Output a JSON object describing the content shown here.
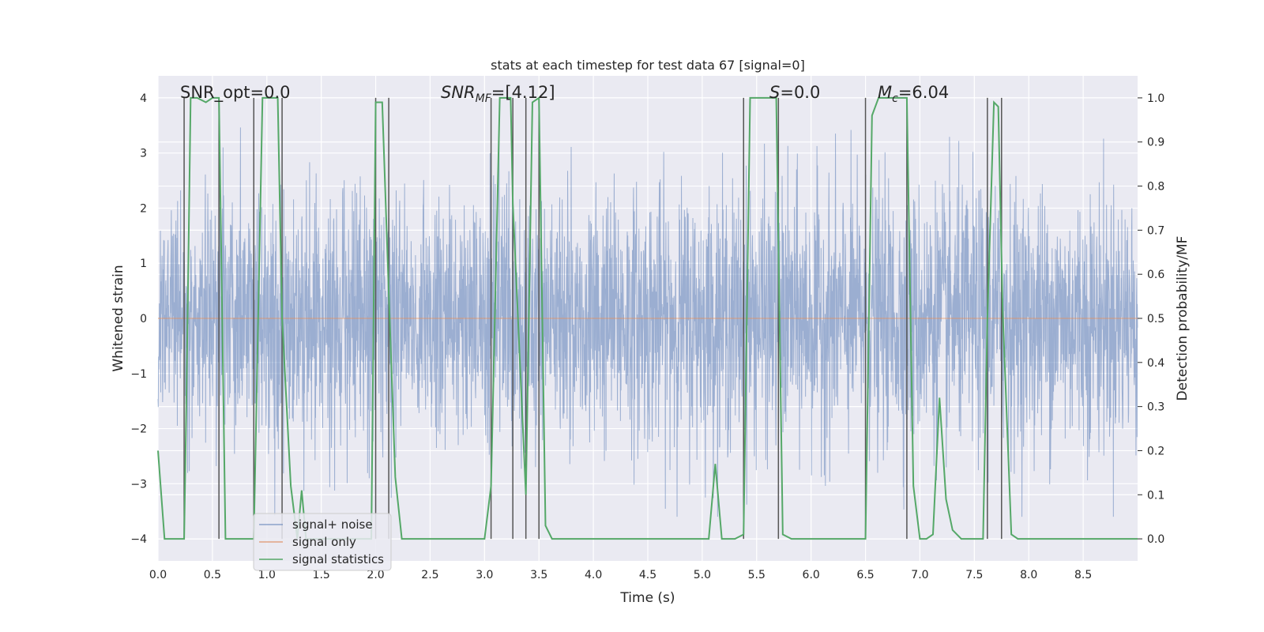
{
  "chart_data": {
    "type": "line",
    "title": "stats at each timestep for test data 67 [signal=0]",
    "xlabel": "Time (s)",
    "ylabel_left": "Whitened strain",
    "ylabel_right": "Detection probability/MF",
    "xlim": [
      0.0,
      9.0
    ],
    "ylim_left": [
      -4.4,
      4.4
    ],
    "ylim_right": [
      -0.05,
      1.05
    ],
    "x_ticks": [
      "0.0",
      "0.5",
      "1.0",
      "1.5",
      "2.0",
      "2.5",
      "3.0",
      "3.5",
      "4.0",
      "4.5",
      "5.0",
      "5.5",
      "6.0",
      "6.5",
      "7.0",
      "7.5",
      "8.0",
      "8.5"
    ],
    "y_ticks_left": [
      "4",
      "3",
      "2",
      "1",
      "0",
      "−1",
      "−2",
      "−3",
      "−4"
    ],
    "y_ticks_right": [
      "1.0",
      "0.9",
      "0.8",
      "0.7",
      "0.6",
      "0.5",
      "0.4",
      "0.3",
      "0.2",
      "0.1",
      "0.0"
    ],
    "grid": true,
    "annotations": {
      "snr_opt": "SNR_opt=0.0",
      "snr_mf": "=[4.12]",
      "s_val": "=0.0",
      "mc_val": "=6.04"
    },
    "legend": {
      "placement": "lower-left",
      "entries": [
        {
          "label": "signal+ noise",
          "color": "#4c72b0"
        },
        {
          "label": "signal only",
          "color": "#dd8452"
        },
        {
          "label": "signal statistics",
          "color": "#55a868"
        }
      ]
    },
    "series": [
      {
        "name": "signal+ noise",
        "axis": "left",
        "description": "whitened strain noise, roughly within ±2.5 with spikes to ±3.6",
        "envelope_typical": [
          -1.6,
          1.6
        ],
        "envelope_peaks": [
          -3.6,
          3.6
        ]
      },
      {
        "name": "signal only",
        "axis": "left",
        "x": [
          0.0,
          9.0
        ],
        "y": [
          0.0,
          0.0
        ]
      },
      {
        "name": "signal statistics",
        "axis": "right",
        "x": [
          0.0,
          0.06,
          0.24,
          0.26,
          0.3,
          0.36,
          0.44,
          0.5,
          0.56,
          0.62,
          0.88,
          0.92,
          0.96,
          1.0,
          1.1,
          1.14,
          1.22,
          1.28,
          1.32,
          1.36,
          1.42,
          1.96,
          2.0,
          2.06,
          2.12,
          2.18,
          2.24,
          3.0,
          3.06,
          3.14,
          3.24,
          3.26,
          3.38,
          3.44,
          3.5,
          3.56,
          3.62,
          5.06,
          5.12,
          5.18,
          5.3,
          5.38,
          5.44,
          5.68,
          5.74,
          5.82,
          6.5,
          6.56,
          6.62,
          6.88,
          6.94,
          7.0,
          7.06,
          7.12,
          7.18,
          7.24,
          7.3,
          7.38,
          7.46,
          7.58,
          7.62,
          7.68,
          7.72,
          7.76,
          7.84,
          7.9,
          7.96,
          9.0
        ],
        "y": [
          0.2,
          0.0,
          0.0,
          0.3,
          1.0,
          1.0,
          0.99,
          1.0,
          1.0,
          0.0,
          0.0,
          0.5,
          1.0,
          1.0,
          1.0,
          0.5,
          0.12,
          0.0,
          0.11,
          0.0,
          0.0,
          0.0,
          0.99,
          0.99,
          0.56,
          0.14,
          0.0,
          0.0,
          0.12,
          1.0,
          1.0,
          0.76,
          0.1,
          0.99,
          1.0,
          0.03,
          0.0,
          0.0,
          0.17,
          0.0,
          0.0,
          0.01,
          1.0,
          1.0,
          0.01,
          0.0,
          0.0,
          0.96,
          1.0,
          1.0,
          0.12,
          0.0,
          0.0,
          0.01,
          0.32,
          0.09,
          0.02,
          0.0,
          0.0,
          0.0,
          0.5,
          0.99,
          0.98,
          0.52,
          0.01,
          0.0,
          0.0,
          0.0
        ]
      }
    ],
    "vertical_lines": [
      0.24,
      0.56,
      0.88,
      1.14,
      2.0,
      2.12,
      3.06,
      3.26,
      3.38,
      3.5,
      5.38,
      5.7,
      6.5,
      6.88,
      7.62,
      7.75
    ]
  }
}
